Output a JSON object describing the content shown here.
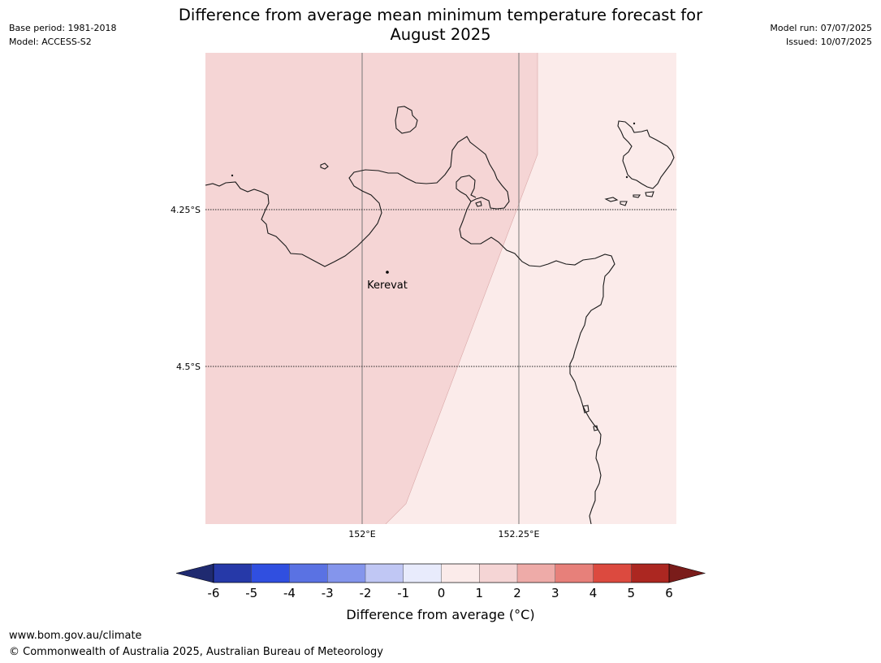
{
  "header": {
    "title_line1": "Difference from average mean minimum temperature forecast for",
    "title_line2": "August 2025",
    "base_period": "Base period: 1981-2018",
    "model": "Model: ACCESS-S2",
    "model_run": "Model run: 07/07/2025",
    "issued": "Issued: 10/07/2025"
  },
  "map": {
    "place_label": "Kerevat",
    "lat_labels": [
      "4.25°S",
      "4.5°S"
    ],
    "lon_labels": [
      "152°E",
      "152.25°E"
    ],
    "zone_colors": {
      "anomaly_1_to_2": "#f5d5d5",
      "anomaly_0_to_1": "#fbebea"
    }
  },
  "colorbar": {
    "title": "Difference from average (°C)",
    "ticks": [
      "-6",
      "-5",
      "-4",
      "-3",
      "-2",
      "-1",
      "0",
      "1",
      "2",
      "3",
      "4",
      "5",
      "6"
    ],
    "under_color": "#1f2a70",
    "over_color": "#7a1c1a",
    "colors": [
      "#2639a8",
      "#304fe0",
      "#5a72e3",
      "#8495ec",
      "#c0c7f4",
      "#e8ebfc",
      "#fbebea",
      "#f5d5d5",
      "#eeaba8",
      "#e7807a",
      "#dc4a3f",
      "#ac2721"
    ]
  },
  "footer": {
    "url": "www.bom.gov.au/climate",
    "copyright": "© Commonwealth of Australia 2025, Australian Bureau of Meteorology"
  }
}
